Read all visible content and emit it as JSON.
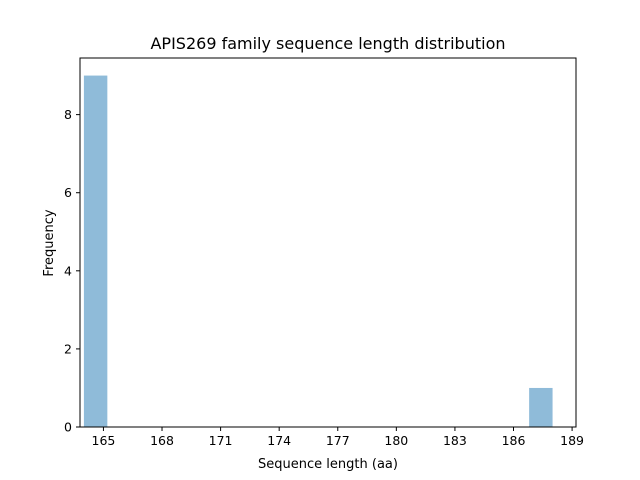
{
  "chart_data": {
    "type": "bar",
    "title": "APIS269 family sequence length distribution",
    "xlabel": "Sequence length (aa)",
    "ylabel": "Frequency",
    "xlim": [
      163.8,
      189.2
    ],
    "ylim": [
      0,
      9.45
    ],
    "xticks": [
      165,
      168,
      171,
      174,
      177,
      180,
      183,
      186,
      189
    ],
    "yticks": [
      0,
      2,
      4,
      6,
      8
    ],
    "bins": [
      {
        "x0": 164.0,
        "x1": 165.2,
        "count": 9
      },
      {
        "x0": 186.8,
        "x1": 188.0,
        "count": 1
      }
    ],
    "grid": false,
    "color": "#1f77b4"
  }
}
